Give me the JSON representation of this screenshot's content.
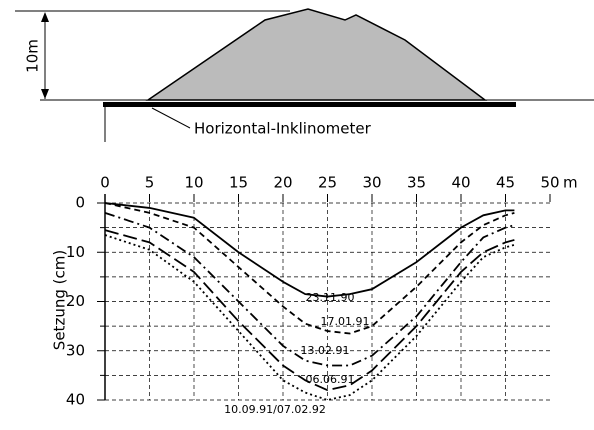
{
  "chart_data": {
    "type": "line",
    "diagram": {
      "height_label": "10m",
      "instrument_label": "Horizontal-Inklinometer"
    },
    "x_unit": "m",
    "y_label": "Setzung (cm)",
    "x": [
      0,
      5,
      10,
      15,
      20,
      22.5,
      25,
      27.5,
      30,
      35,
      40,
      42.5,
      45,
      46
    ],
    "xlim": [
      0,
      50
    ],
    "xticks": [
      0,
      5,
      10,
      15,
      20,
      25,
      30,
      35,
      40,
      45,
      50
    ],
    "ylim": [
      0,
      40
    ],
    "yticks": [
      0,
      10,
      20,
      30,
      40
    ],
    "y_inverted": true,
    "grid": true,
    "series": [
      {
        "name": "23.11.90",
        "color": "#000000",
        "dash": "solid",
        "values": [
          0,
          1,
          3,
          10,
          16,
          18.5,
          19,
          18.5,
          17.5,
          12,
          5,
          2.5,
          1.5,
          1.5
        ]
      },
      {
        "name": "17.01.91",
        "color": "#000000",
        "dash": "dashed",
        "values": [
          0,
          2,
          5,
          13,
          21,
          24.5,
          26,
          26.5,
          25,
          17,
          8,
          4.5,
          2.5,
          2
        ]
      },
      {
        "name": "13.02.91",
        "color": "#000000",
        "dash": "dashdot",
        "values": [
          2,
          5,
          11,
          20,
          29,
          32,
          33,
          33,
          31,
          23,
          12,
          7,
          5,
          4.5
        ]
      },
      {
        "name": "06.06.91",
        "color": "#000000",
        "dash": "longdash",
        "values": [
          5.5,
          8,
          14,
          24,
          33,
          36,
          38,
          37,
          34,
          25,
          14,
          10,
          8,
          7.5
        ]
      },
      {
        "name": "10.09.91/07.02.92",
        "color": "#000000",
        "dash": "dotted",
        "values": [
          6.5,
          9.5,
          16,
          26,
          36,
          38.5,
          40,
          39,
          36,
          27,
          16,
          11,
          9,
          8.5
        ]
      }
    ]
  }
}
